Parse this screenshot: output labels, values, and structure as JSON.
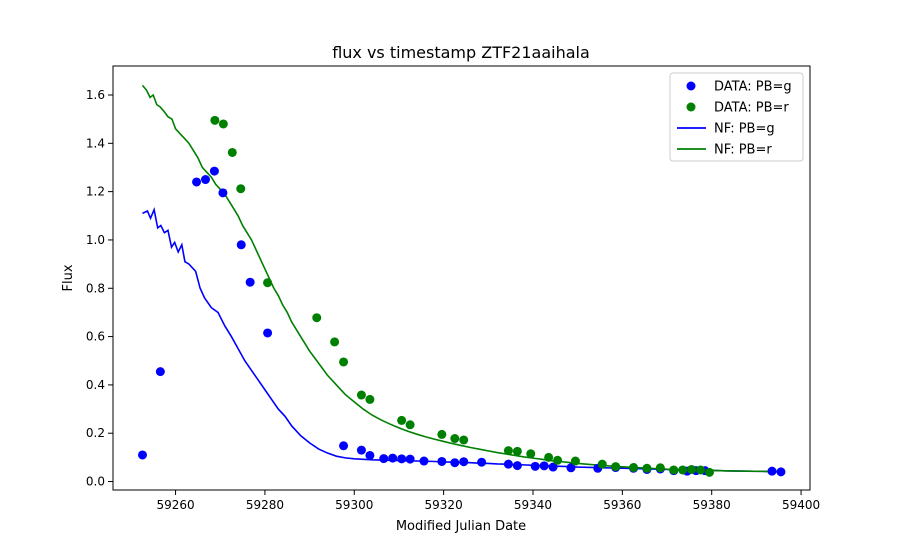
{
  "chart_data": {
    "type": "scatter",
    "title": "flux vs timestamp ZTF21aaihala",
    "xlabel": "Modified Julian Date",
    "ylabel": "Flux",
    "xlim": [
      59246,
      59402
    ],
    "ylim": [
      -0.035,
      1.72
    ],
    "x_ticks": [
      59260,
      59280,
      59300,
      59320,
      59340,
      59360,
      59380,
      59400
    ],
    "y_ticks": [
      0.0,
      0.2,
      0.4,
      0.6,
      0.8,
      1.0,
      1.2,
      1.4,
      1.6
    ],
    "grid": false,
    "legend_position": "top-right",
    "colors": {
      "g": "#0000ff",
      "r": "#008000"
    },
    "series": [
      {
        "name": "DATA: PB=g",
        "kind": "scatter",
        "color": "#0000ff",
        "points": [
          [
            59252.6,
            0.11
          ],
          [
            59256.6,
            0.455
          ],
          [
            59264.7,
            1.24
          ],
          [
            59266.7,
            1.25
          ],
          [
            59268.7,
            1.285
          ],
          [
            59270.6,
            1.195
          ],
          [
            59274.7,
            0.98
          ],
          [
            59276.7,
            0.825
          ],
          [
            59280.6,
            0.615
          ],
          [
            59297.6,
            0.148
          ],
          [
            59301.6,
            0.13
          ],
          [
            59303.5,
            0.108
          ],
          [
            59306.6,
            0.095
          ],
          [
            59308.6,
            0.097
          ],
          [
            59310.6,
            0.094
          ],
          [
            59312.5,
            0.093
          ],
          [
            59315.6,
            0.085
          ],
          [
            59319.6,
            0.083
          ],
          [
            59322.5,
            0.078
          ],
          [
            59324.5,
            0.082
          ],
          [
            59328.5,
            0.08
          ],
          [
            59334.5,
            0.072
          ],
          [
            59336.5,
            0.066
          ],
          [
            59340.5,
            0.063
          ],
          [
            59342.5,
            0.065
          ],
          [
            59344.5,
            0.06
          ],
          [
            59348.5,
            0.057
          ],
          [
            59354.5,
            0.055
          ],
          [
            59358.5,
            0.058
          ],
          [
            59362.5,
            0.055
          ],
          [
            59365.5,
            0.05
          ],
          [
            59368.5,
            0.052
          ],
          [
            59371.5,
            0.045
          ],
          [
            59374.5,
            0.043
          ],
          [
            59376.5,
            0.045
          ],
          [
            59378.5,
            0.045
          ],
          [
            59393.5,
            0.043
          ],
          [
            59395.5,
            0.04
          ]
        ]
      },
      {
        "name": "DATA: PB=r",
        "kind": "scatter",
        "color": "#008000",
        "points": [
          [
            59268.8,
            1.495
          ],
          [
            59270.7,
            1.48
          ],
          [
            59272.7,
            1.362
          ],
          [
            59274.6,
            1.212
          ],
          [
            59280.6,
            0.823
          ],
          [
            59291.6,
            0.678
          ],
          [
            59295.6,
            0.578
          ],
          [
            59297.6,
            0.495
          ],
          [
            59301.6,
            0.358
          ],
          [
            59303.5,
            0.34
          ],
          [
            59310.6,
            0.253
          ],
          [
            59312.5,
            0.235
          ],
          [
            59319.6,
            0.195
          ],
          [
            59322.5,
            0.178
          ],
          [
            59324.5,
            0.172
          ],
          [
            59334.5,
            0.128
          ],
          [
            59336.5,
            0.125
          ],
          [
            59339.5,
            0.115
          ],
          [
            59343.5,
            0.1
          ],
          [
            59345.5,
            0.088
          ],
          [
            59349.5,
            0.085
          ],
          [
            59355.5,
            0.072
          ],
          [
            59358.5,
            0.062
          ],
          [
            59362.5,
            0.058
          ],
          [
            59365.5,
            0.055
          ],
          [
            59368.5,
            0.057
          ],
          [
            59371.5,
            0.048
          ],
          [
            59373.5,
            0.048
          ],
          [
            59375.5,
            0.05
          ],
          [
            59377.5,
            0.048
          ],
          [
            59379.5,
            0.038
          ]
        ]
      },
      {
        "name": "NF: PB=g",
        "kind": "line",
        "color": "#0000ff",
        "points": [
          [
            59252.6,
            1.11
          ],
          [
            59253.7,
            1.12
          ],
          [
            59254.4,
            1.09
          ],
          [
            59255.2,
            1.125
          ],
          [
            59256.0,
            1.05
          ],
          [
            59256.7,
            1.06
          ],
          [
            59257.5,
            1.03
          ],
          [
            59258.3,
            1.04
          ],
          [
            59259.1,
            0.97
          ],
          [
            59259.8,
            0.99
          ],
          [
            59260.6,
            0.95
          ],
          [
            59261.4,
            0.98
          ],
          [
            59262.1,
            0.91
          ],
          [
            59263.0,
            0.9
          ],
          [
            59264.5,
            0.87
          ],
          [
            59265.5,
            0.8
          ],
          [
            59266.5,
            0.76
          ],
          [
            59268.0,
            0.72
          ],
          [
            59269.5,
            0.7
          ],
          [
            59271.0,
            0.645
          ],
          [
            59272.5,
            0.6
          ],
          [
            59274.0,
            0.55
          ],
          [
            59275.5,
            0.5
          ],
          [
            59277.0,
            0.46
          ],
          [
            59278.5,
            0.42
          ],
          [
            59280.0,
            0.38
          ],
          [
            59281.5,
            0.34
          ],
          [
            59283.0,
            0.3
          ],
          [
            59284.5,
            0.27
          ],
          [
            59286.0,
            0.23
          ],
          [
            59288.0,
            0.19
          ],
          [
            59290.0,
            0.16
          ],
          [
            59292.0,
            0.135
          ],
          [
            59294.0,
            0.118
          ],
          [
            59296.0,
            0.105
          ],
          [
            59298.0,
            0.098
          ],
          [
            59300.0,
            0.094
          ],
          [
            59302.0,
            0.092
          ],
          [
            59304.0,
            0.09
          ],
          [
            59306.0,
            0.089
          ],
          [
            59308.0,
            0.088
          ],
          [
            59310.0,
            0.087
          ],
          [
            59312.0,
            0.086
          ],
          [
            59314.0,
            0.085
          ],
          [
            59316.0,
            0.084
          ],
          [
            59318.0,
            0.083
          ],
          [
            59320.0,
            0.081
          ],
          [
            59322.0,
            0.08
          ],
          [
            59324.0,
            0.079
          ],
          [
            59326.0,
            0.078
          ],
          [
            59328.0,
            0.076
          ],
          [
            59330.0,
            0.075
          ],
          [
            59332.0,
            0.073
          ],
          [
            59334.0,
            0.072
          ],
          [
            59336.0,
            0.07
          ],
          [
            59338.0,
            0.069
          ],
          [
            59340.0,
            0.067
          ],
          [
            59342.0,
            0.066
          ],
          [
            59344.0,
            0.064
          ],
          [
            59346.0,
            0.063
          ],
          [
            59348.0,
            0.062
          ],
          [
            59350.0,
            0.06
          ],
          [
            59352.0,
            0.059
          ],
          [
            59354.0,
            0.058
          ],
          [
            59356.0,
            0.057
          ],
          [
            59358.0,
            0.056
          ],
          [
            59360.0,
            0.055
          ],
          [
            59362.0,
            0.054
          ],
          [
            59364.0,
            0.053
          ],
          [
            59366.0,
            0.052
          ],
          [
            59368.0,
            0.051
          ],
          [
            59370.0,
            0.05
          ],
          [
            59372.0,
            0.049
          ],
          [
            59374.0,
            0.048
          ],
          [
            59376.0,
            0.047
          ],
          [
            59378.0,
            0.047
          ],
          [
            59380.0,
            0.046
          ],
          [
            59384.0,
            0.044
          ],
          [
            59388.0,
            0.043
          ],
          [
            59392.0,
            0.042
          ],
          [
            59395.5,
            0.041
          ]
        ]
      },
      {
        "name": "NF: PB=r",
        "kind": "line",
        "color": "#008000",
        "points": [
          [
            59252.6,
            1.64
          ],
          [
            59253.5,
            1.62
          ],
          [
            59254.3,
            1.59
          ],
          [
            59255.0,
            1.6
          ],
          [
            59255.8,
            1.56
          ],
          [
            59256.6,
            1.55
          ],
          [
            59257.5,
            1.53
          ],
          [
            59258.3,
            1.51
          ],
          [
            59259.2,
            1.5
          ],
          [
            59260.0,
            1.46
          ],
          [
            59261.0,
            1.44
          ],
          [
            59262.0,
            1.42
          ],
          [
            59263.0,
            1.4
          ],
          [
            59264.0,
            1.37
          ],
          [
            59265.0,
            1.34
          ],
          [
            59266.0,
            1.3
          ],
          [
            59267.0,
            1.28
          ],
          [
            59268.0,
            1.26
          ],
          [
            59269.0,
            1.23
          ],
          [
            59270.0,
            1.21
          ],
          [
            59271.0,
            1.19
          ],
          [
            59272.0,
            1.16
          ],
          [
            59273.0,
            1.13
          ],
          [
            59274.0,
            1.1
          ],
          [
            59275.0,
            1.06
          ],
          [
            59276.0,
            1.03
          ],
          [
            59277.0,
            1.0
          ],
          [
            59278.0,
            0.96
          ],
          [
            59279.0,
            0.92
          ],
          [
            59280.0,
            0.88
          ],
          [
            59281.0,
            0.84
          ],
          [
            59282.0,
            0.8
          ],
          [
            59283.0,
            0.77
          ],
          [
            59284.0,
            0.73
          ],
          [
            59285.0,
            0.7
          ],
          [
            59286.0,
            0.66
          ],
          [
            59287.0,
            0.63
          ],
          [
            59288.0,
            0.6
          ],
          [
            59289.0,
            0.57
          ],
          [
            59290.0,
            0.54
          ],
          [
            59292.0,
            0.49
          ],
          [
            59294.0,
            0.44
          ],
          [
            59296.0,
            0.4
          ],
          [
            59298.0,
            0.36
          ],
          [
            59300.0,
            0.33
          ],
          [
            59302.0,
            0.3
          ],
          [
            59304.0,
            0.275
          ],
          [
            59306.0,
            0.255
          ],
          [
            59308.0,
            0.238
          ],
          [
            59310.0,
            0.222
          ],
          [
            59312.0,
            0.208
          ],
          [
            59314.0,
            0.196
          ],
          [
            59316.0,
            0.185
          ],
          [
            59318.0,
            0.175
          ],
          [
            59320.0,
            0.166
          ],
          [
            59322.0,
            0.157
          ],
          [
            59324.0,
            0.149
          ],
          [
            59326.0,
            0.141
          ],
          [
            59328.0,
            0.134
          ],
          [
            59330.0,
            0.127
          ],
          [
            59332.0,
            0.12
          ],
          [
            59334.0,
            0.114
          ],
          [
            59336.0,
            0.108
          ],
          [
            59338.0,
            0.102
          ],
          [
            59340.0,
            0.097
          ],
          [
            59342.0,
            0.092
          ],
          [
            59344.0,
            0.087
          ],
          [
            59346.0,
            0.083
          ],
          [
            59348.0,
            0.079
          ],
          [
            59350.0,
            0.075
          ],
          [
            59352.0,
            0.072
          ],
          [
            59354.0,
            0.069
          ],
          [
            59356.0,
            0.066
          ],
          [
            59358.0,
            0.063
          ],
          [
            59360.0,
            0.061
          ],
          [
            59362.0,
            0.059
          ],
          [
            59364.0,
            0.057
          ],
          [
            59366.0,
            0.055
          ],
          [
            59368.0,
            0.053
          ],
          [
            59370.0,
            0.051
          ],
          [
            59372.0,
            0.05
          ],
          [
            59374.0,
            0.049
          ],
          [
            59376.0,
            0.048
          ],
          [
            59378.0,
            0.047
          ],
          [
            59380.0,
            0.046
          ],
          [
            59384.0,
            0.044
          ],
          [
            59388.0,
            0.043
          ],
          [
            59392.0,
            0.042
          ],
          [
            59395.5,
            0.041
          ]
        ]
      }
    ]
  }
}
